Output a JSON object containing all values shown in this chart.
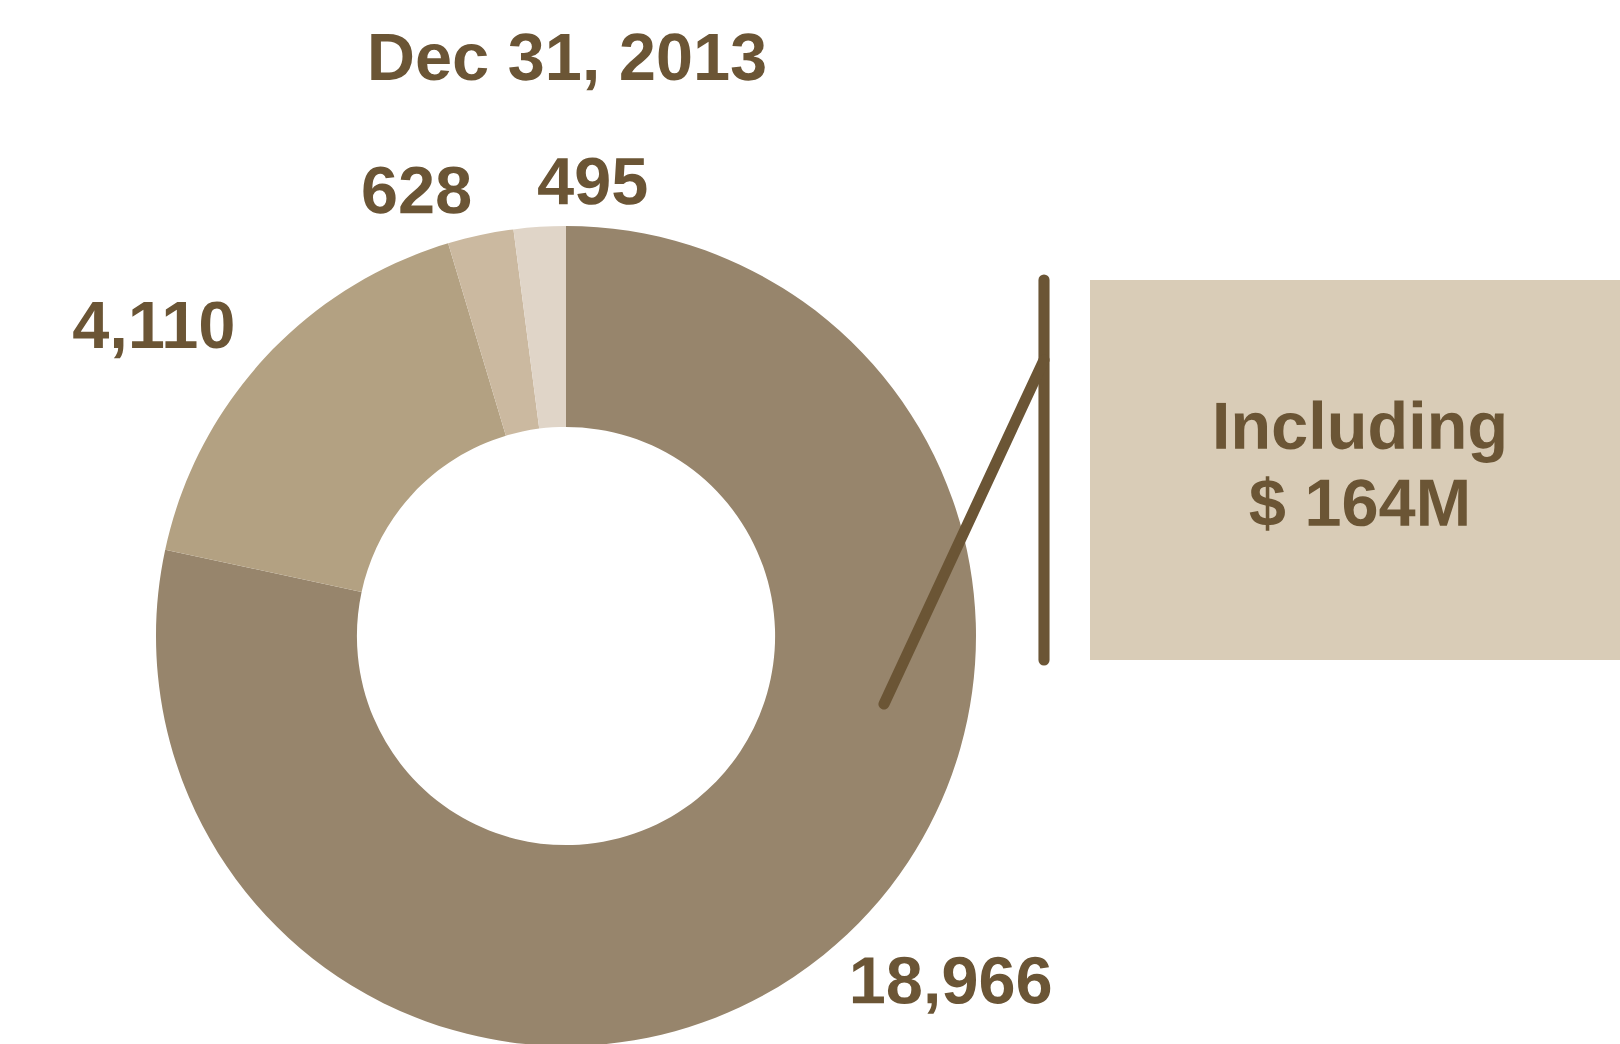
{
  "chart_data": {
    "type": "donut",
    "title": "Dec 31, 2013",
    "categories": [
      null,
      null,
      null,
      null
    ],
    "values": [
      18966,
      4110,
      628,
      495
    ],
    "colors": [
      "#97856c",
      "#b3a182",
      "#cbb9a0",
      "#e0d5c8"
    ],
    "value_labels": [
      "18,966",
      "4,110",
      "628",
      "495"
    ],
    "annotations": [
      "Including\n$ 164M"
    ]
  }
}
